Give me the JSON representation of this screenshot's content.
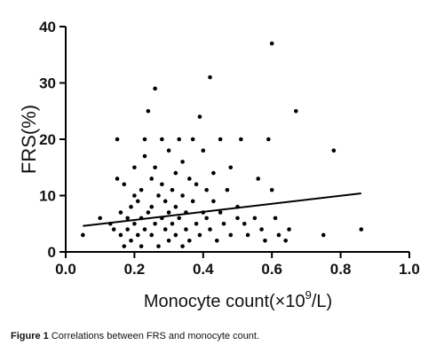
{
  "chart_data": {
    "type": "scatter",
    "title": "",
    "xlabel_prefix": "Monocyte count(×10",
    "xlabel_sup": "9",
    "xlabel_suffix": "/L)",
    "ylabel": "FRS(%)",
    "xlim": [
      0.0,
      1.0
    ],
    "ylim": [
      0,
      40
    ],
    "xticks": [
      0.0,
      0.2,
      0.4,
      0.6,
      0.8,
      1.0
    ],
    "xtick_labels": [
      "0.0",
      "0.2",
      "0.4",
      "0.6",
      "0.8",
      "1.0"
    ],
    "yticks": [
      0,
      10,
      20,
      30,
      40
    ],
    "ytick_labels": [
      "0",
      "10",
      "20",
      "30",
      "40"
    ],
    "grid": false,
    "legend": "none",
    "marker_color": "#000000",
    "series": [
      {
        "points": [
          [
            0.05,
            3
          ],
          [
            0.1,
            6
          ],
          [
            0.13,
            5
          ],
          [
            0.14,
            4
          ],
          [
            0.15,
            20
          ],
          [
            0.15,
            13
          ],
          [
            0.16,
            7
          ],
          [
            0.16,
            3
          ],
          [
            0.17,
            1
          ],
          [
            0.17,
            12
          ],
          [
            0.18,
            4
          ],
          [
            0.18,
            6
          ],
          [
            0.19,
            8
          ],
          [
            0.19,
            2
          ],
          [
            0.2,
            10
          ],
          [
            0.2,
            5
          ],
          [
            0.2,
            15
          ],
          [
            0.21,
            3
          ],
          [
            0.21,
            9
          ],
          [
            0.22,
            6
          ],
          [
            0.22,
            1
          ],
          [
            0.22,
            11
          ],
          [
            0.23,
            20
          ],
          [
            0.23,
            4
          ],
          [
            0.23,
            17
          ],
          [
            0.24,
            7
          ],
          [
            0.24,
            25
          ],
          [
            0.25,
            3
          ],
          [
            0.25,
            13
          ],
          [
            0.25,
            8
          ],
          [
            0.26,
            29
          ],
          [
            0.26,
            15
          ],
          [
            0.26,
            5
          ],
          [
            0.27,
            1
          ],
          [
            0.27,
            10
          ],
          [
            0.28,
            20
          ],
          [
            0.28,
            6
          ],
          [
            0.28,
            12
          ],
          [
            0.29,
            4
          ],
          [
            0.29,
            9
          ],
          [
            0.3,
            2
          ],
          [
            0.3,
            7
          ],
          [
            0.3,
            18
          ],
          [
            0.31,
            5
          ],
          [
            0.31,
            11
          ],
          [
            0.32,
            14
          ],
          [
            0.32,
            3
          ],
          [
            0.32,
            8
          ],
          [
            0.33,
            20
          ],
          [
            0.33,
            6
          ],
          [
            0.34,
            1
          ],
          [
            0.34,
            10
          ],
          [
            0.34,
            16
          ],
          [
            0.35,
            4
          ],
          [
            0.35,
            7
          ],
          [
            0.36,
            13
          ],
          [
            0.36,
            2
          ],
          [
            0.37,
            20
          ],
          [
            0.37,
            9
          ],
          [
            0.38,
            5
          ],
          [
            0.38,
            12
          ],
          [
            0.39,
            24
          ],
          [
            0.39,
            3
          ],
          [
            0.4,
            7
          ],
          [
            0.4,
            18
          ],
          [
            0.41,
            6
          ],
          [
            0.41,
            11
          ],
          [
            0.42,
            31
          ],
          [
            0.42,
            4
          ],
          [
            0.43,
            9
          ],
          [
            0.43,
            14
          ],
          [
            0.44,
            2
          ],
          [
            0.45,
            20
          ],
          [
            0.45,
            7
          ],
          [
            0.46,
            5
          ],
          [
            0.47,
            11
          ],
          [
            0.48,
            15
          ],
          [
            0.48,
            3
          ],
          [
            0.5,
            8
          ],
          [
            0.5,
            6
          ],
          [
            0.51,
            20
          ],
          [
            0.52,
            5
          ],
          [
            0.53,
            3
          ],
          [
            0.55,
            6
          ],
          [
            0.56,
            13
          ],
          [
            0.57,
            4
          ],
          [
            0.58,
            2
          ],
          [
            0.59,
            20
          ],
          [
            0.6,
            37
          ],
          [
            0.6,
            11
          ],
          [
            0.61,
            6
          ],
          [
            0.62,
            3
          ],
          [
            0.64,
            2
          ],
          [
            0.65,
            4
          ],
          [
            0.67,
            25
          ],
          [
            0.75,
            3
          ],
          [
            0.78,
            18
          ],
          [
            0.86,
            4
          ]
        ]
      }
    ],
    "fit_line": {
      "x": [
        0.05,
        0.86
      ],
      "y": [
        4.6,
        10.4
      ]
    }
  },
  "caption": {
    "label": "Figure 1",
    "text": "Correlations between FRS and monocyte count."
  }
}
